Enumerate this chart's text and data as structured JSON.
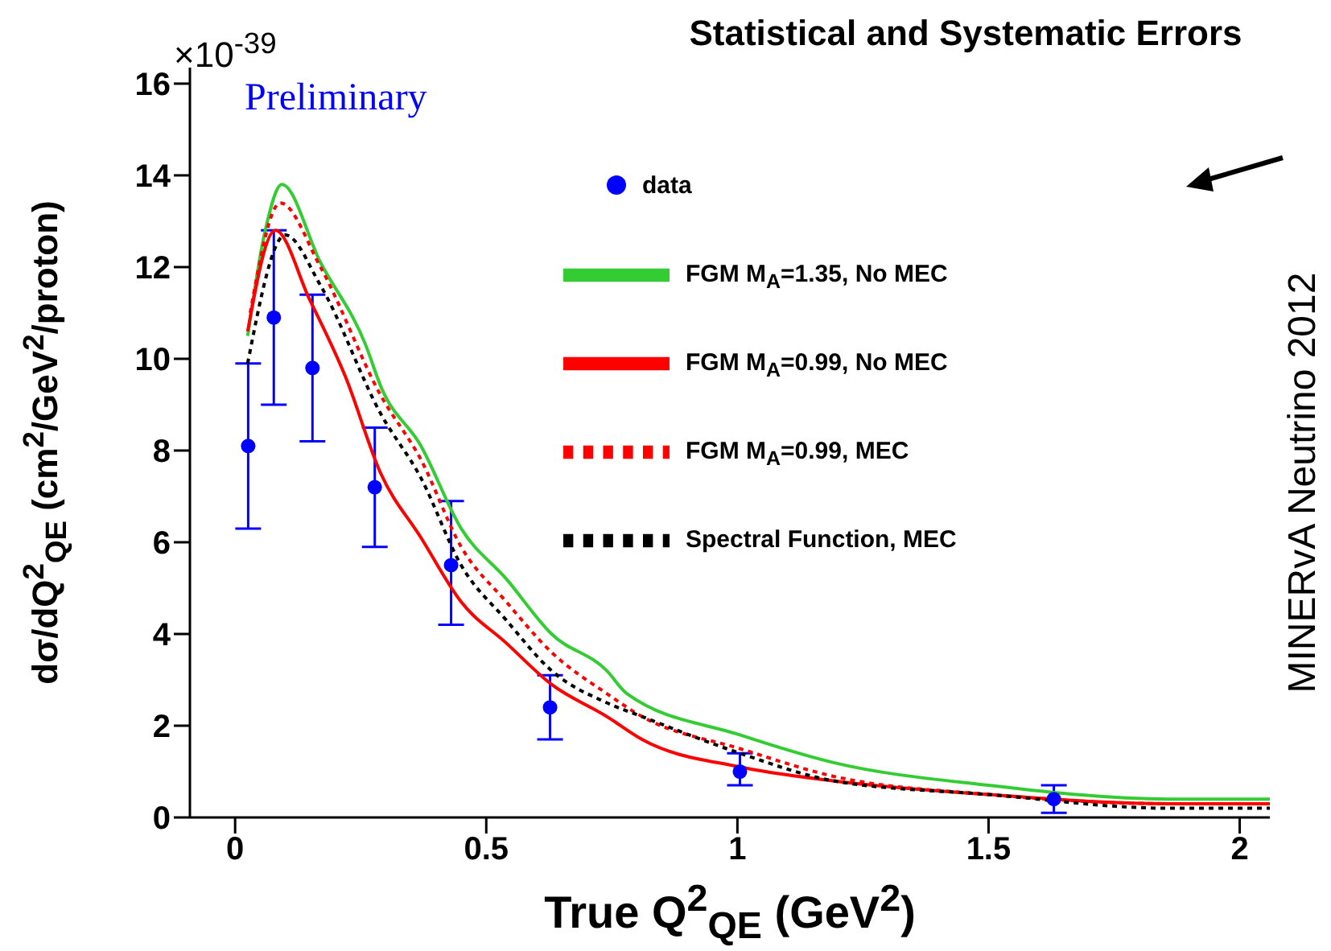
{
  "chart_data": {
    "type": "line",
    "title": "Statistical and Systematic Errors",
    "xlabel": "True Q$^{2}$$_{QE}$ (GeV$^{2}$)",
    "ylabel": "dσ/dQ$^{2}$$_{QE}$ (cm$^{2}$/GeV$^{2}$/proton)",
    "annotations": [
      "×10$^{-39}$",
      "Preliminary",
      "MINERvA Neutrino 2012"
    ],
    "xlim": [
      -0.09,
      2.06
    ],
    "xticks": [
      0,
      0.5,
      1,
      1.5,
      2
    ],
    "ylim": [
      0,
      16.35
    ],
    "yticks": [
      0,
      2,
      4,
      6,
      8,
      10,
      12,
      14,
      16
    ],
    "legend": "top right",
    "series": [
      {
        "name": "data",
        "type": "scatter",
        "marker": "circle",
        "color": "#0000ff",
        "x": [
          0.026,
          0.077,
          0.154,
          0.278,
          0.43,
          0.627,
          1.005,
          1.63
        ],
        "values": [
          8.1,
          10.9,
          9.8,
          7.2,
          5.5,
          2.4,
          1.0,
          0.4
        ],
        "errors": [
          [
            6.3,
            9.9
          ],
          [
            9.0,
            12.8
          ],
          [
            8.2,
            11.4
          ],
          [
            5.9,
            8.5
          ],
          [
            4.2,
            6.9
          ],
          [
            1.7,
            3.1
          ],
          [
            0.7,
            1.4
          ],
          [
            0.1,
            0.7
          ]
        ]
      },
      {
        "name": "FGM M$_{A}$=1.35, No MEC",
        "line_style": "solid",
        "color": "#33cc33",
        "x": [
          0.025,
          0.06,
          0.093,
          0.17,
          0.26,
          0.29,
          0.37,
          0.45,
          0.54,
          0.63,
          0.74,
          0.78,
          1.005,
          1.19,
          1.5,
          1.86,
          2.06
        ],
        "values": [
          10.5,
          12.8,
          13.8,
          12.1,
          10.3,
          9.4,
          8.1,
          6.3,
          5.2,
          4.0,
          3.2,
          2.7,
          1.8,
          1.2,
          0.7,
          0.4,
          0.4
        ]
      },
      {
        "name": "FGM M$_{A}$=0.99, No MEC",
        "line_style": "solid",
        "color": "#ff0000",
        "x": [
          0.025,
          0.08,
          0.148,
          0.22,
          0.29,
          0.37,
          0.45,
          0.54,
          0.63,
          0.74,
          0.81,
          1.005,
          1.19,
          1.5,
          1.86,
          2.06
        ],
        "values": [
          10.6,
          12.8,
          11.3,
          9.6,
          7.5,
          6.1,
          4.7,
          3.8,
          2.9,
          2.2,
          1.7,
          1.1,
          0.8,
          0.5,
          0.3,
          0.3
        ]
      },
      {
        "name": "FGM M$_{A}$=0.99, MEC",
        "line_style": "dotted",
        "color": "#ff0000",
        "x": [
          0.03,
          0.09,
          0.17,
          0.29,
          0.37,
          0.45,
          0.54,
          0.63,
          0.74,
          0.81,
          1.005,
          1.19,
          1.5,
          1.86,
          2.06
        ],
        "values": [
          11.0,
          13.4,
          12.0,
          9.2,
          7.8,
          5.9,
          4.7,
          3.6,
          2.7,
          2.2,
          1.5,
          0.9,
          0.5,
          0.3,
          0.3
        ]
      },
      {
        "name": "Spectral Function, MEC",
        "line_style": "dotted",
        "color": "#000000",
        "x": [
          0.025,
          0.1,
          0.17,
          0.29,
          0.37,
          0.45,
          0.54,
          0.63,
          0.74,
          0.81,
          1.005,
          1.19,
          1.5,
          1.86,
          2.06
        ],
        "values": [
          9.9,
          12.7,
          11.6,
          8.8,
          7.4,
          5.5,
          4.3,
          3.2,
          2.5,
          2.2,
          1.4,
          0.8,
          0.5,
          0.2,
          0.2
        ]
      }
    ]
  }
}
